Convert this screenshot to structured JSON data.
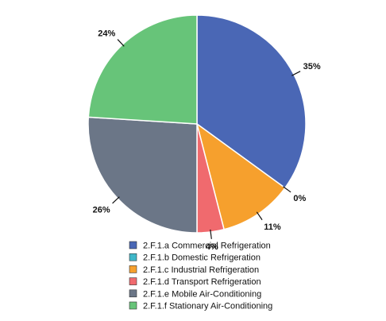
{
  "chart_data": {
    "type": "pie",
    "title": "",
    "start_angle_deg": 90,
    "direction": "clockwise",
    "legend_position": "bottom",
    "slices": [
      {
        "name": "2.F.1.a Commercial Refrigeration",
        "value": 35,
        "label": "35%",
        "color": "#4A67B5"
      },
      {
        "name": "2.F.1.b Domestic Refrigeration",
        "value": 0,
        "label": "0%",
        "color": "#3FB7C9"
      },
      {
        "name": "2.F.1.c Industrial Refrigeration",
        "value": 11,
        "label": "11%",
        "color": "#F6A02D"
      },
      {
        "name": "2.F.1.d Transport Refrigeration",
        "value": 4,
        "label": "4%",
        "color": "#F06A6E"
      },
      {
        "name": "2.F.1.e Mobile Air-Conditioning",
        "value": 26,
        "label": "26%",
        "color": "#6B7687"
      },
      {
        "name": "2.F.1.f Stationary Air-Conditioning",
        "value": 24,
        "label": "24%",
        "color": "#67C479"
      }
    ]
  }
}
